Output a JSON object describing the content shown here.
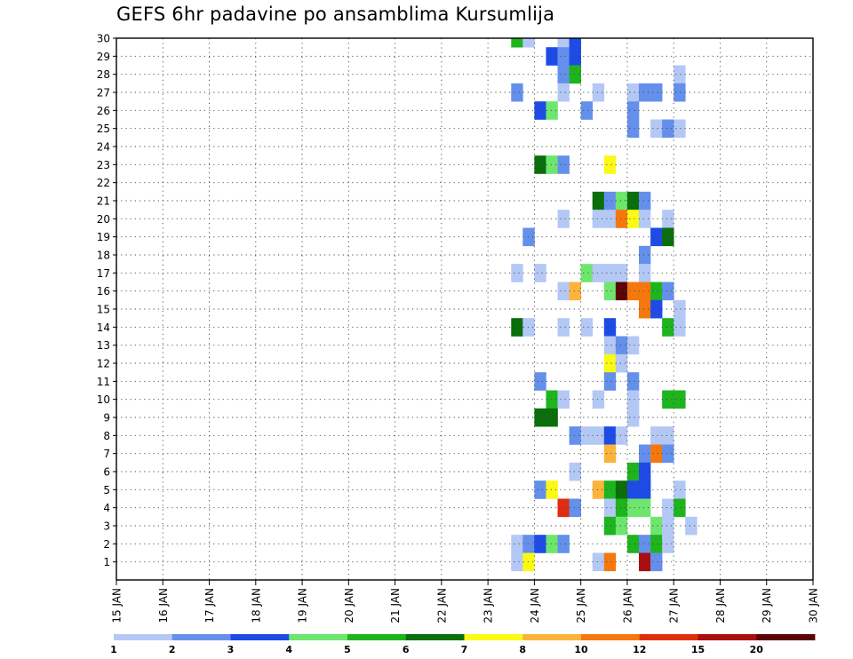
{
  "chart_data": {
    "type": "heatmap",
    "title": "GEFS 6hr padavine po ansamblima Kursumlija",
    "xlabel": "",
    "ylabel": "",
    "x_ticks": [
      "15 JAN",
      "16 JAN",
      "17 JAN",
      "18 JAN",
      "19 JAN",
      "20 JAN",
      "21 JAN",
      "22 JAN",
      "23 JAN",
      "24 JAN",
      "25 JAN",
      "26 JAN",
      "27 JAN",
      "28 JAN",
      "29 JAN",
      "30 JAN"
    ],
    "y_ticks": [
      1,
      2,
      3,
      4,
      5,
      6,
      7,
      8,
      9,
      10,
      11,
      12,
      13,
      14,
      15,
      16,
      17,
      18,
      19,
      20,
      21,
      22,
      23,
      24,
      25,
      26,
      27,
      28,
      29,
      30
    ],
    "xlim": [
      0,
      60
    ],
    "ylim": [
      0,
      30
    ],
    "grid": true,
    "legend": {
      "position": "bottom",
      "thresholds": [
        "1",
        "2",
        "3",
        "4",
        "5",
        "6",
        "7",
        "8",
        "10",
        "12",
        "15",
        "20"
      ],
      "colors": [
        "#b4c8f5",
        "#6490eb",
        "#1e4be6",
        "#6ee66e",
        "#1eb41e",
        "#0a6e0a",
        "#fafa14",
        "#fab43c",
        "#f5780f",
        "#e12d0f",
        "#aa0f0f",
        "#5a0505"
      ]
    },
    "cells": [
      {
        "x": 34.5,
        "y": 30,
        "c": 5
      },
      {
        "x": 35.5,
        "y": 30,
        "c": 1
      },
      {
        "x": 38.5,
        "y": 30,
        "c": 1
      },
      {
        "x": 39.5,
        "y": 30,
        "c": 3
      },
      {
        "x": 37.5,
        "y": 29,
        "c": 3
      },
      {
        "x": 38.5,
        "y": 29,
        "c": 2
      },
      {
        "x": 39.5,
        "y": 29,
        "c": 3
      },
      {
        "x": 38.5,
        "y": 28,
        "c": 2
      },
      {
        "x": 39.5,
        "y": 28,
        "c": 5
      },
      {
        "x": 48.5,
        "y": 28,
        "c": 1
      },
      {
        "x": 34.5,
        "y": 27,
        "c": 2
      },
      {
        "x": 38.5,
        "y": 27,
        "c": 1
      },
      {
        "x": 41.5,
        "y": 27,
        "c": 1
      },
      {
        "x": 44.5,
        "y": 27,
        "c": 1
      },
      {
        "x": 45.5,
        "y": 27,
        "c": 2
      },
      {
        "x": 46.5,
        "y": 27,
        "c": 2
      },
      {
        "x": 48.5,
        "y": 27,
        "c": 2
      },
      {
        "x": 36.5,
        "y": 26,
        "c": 3
      },
      {
        "x": 37.5,
        "y": 26,
        "c": 4
      },
      {
        "x": 40.5,
        "y": 26,
        "c": 2
      },
      {
        "x": 44.5,
        "y": 26,
        "c": 2
      },
      {
        "x": 44.5,
        "y": 25,
        "c": 2
      },
      {
        "x": 46.5,
        "y": 25,
        "c": 1
      },
      {
        "x": 47.5,
        "y": 25,
        "c": 2
      },
      {
        "x": 48.5,
        "y": 25,
        "c": 1
      },
      {
        "x": 36.5,
        "y": 23,
        "c": 6
      },
      {
        "x": 37.5,
        "y": 23,
        "c": 4
      },
      {
        "x": 38.5,
        "y": 23,
        "c": 2
      },
      {
        "x": 42.5,
        "y": 23,
        "c": 7
      },
      {
        "x": 41.5,
        "y": 21,
        "c": 6
      },
      {
        "x": 42.5,
        "y": 21,
        "c": 2
      },
      {
        "x": 43.5,
        "y": 21,
        "c": 4
      },
      {
        "x": 44.5,
        "y": 21,
        "c": 6
      },
      {
        "x": 45.5,
        "y": 21,
        "c": 2
      },
      {
        "x": 38.5,
        "y": 20,
        "c": 1
      },
      {
        "x": 41.5,
        "y": 20,
        "c": 1
      },
      {
        "x": 42.5,
        "y": 20,
        "c": 1
      },
      {
        "x": 43.5,
        "y": 20,
        "c": 9
      },
      {
        "x": 44.5,
        "y": 20,
        "c": 7
      },
      {
        "x": 45.5,
        "y": 20,
        "c": 1
      },
      {
        "x": 47.5,
        "y": 20,
        "c": 1
      },
      {
        "x": 35.5,
        "y": 19,
        "c": 2
      },
      {
        "x": 46.5,
        "y": 19,
        "c": 3
      },
      {
        "x": 47.5,
        "y": 19,
        "c": 6
      },
      {
        "x": 45.5,
        "y": 18,
        "c": 2
      },
      {
        "x": 34.5,
        "y": 17,
        "c": 1
      },
      {
        "x": 36.5,
        "y": 17,
        "c": 1
      },
      {
        "x": 40.5,
        "y": 17,
        "c": 4
      },
      {
        "x": 41.5,
        "y": 17,
        "c": 1
      },
      {
        "x": 42.5,
        "y": 17,
        "c": 1
      },
      {
        "x": 43.5,
        "y": 17,
        "c": 1
      },
      {
        "x": 45.5,
        "y": 17,
        "c": 1
      },
      {
        "x": 38.5,
        "y": 16,
        "c": 1
      },
      {
        "x": 39.5,
        "y": 16,
        "c": 8
      },
      {
        "x": 42.5,
        "y": 16,
        "c": 4
      },
      {
        "x": 43.5,
        "y": 16,
        "c": 12
      },
      {
        "x": 44.5,
        "y": 16,
        "c": 9
      },
      {
        "x": 45.5,
        "y": 16,
        "c": 9
      },
      {
        "x": 46.5,
        "y": 16,
        "c": 5
      },
      {
        "x": 47.5,
        "y": 16,
        "c": 2
      },
      {
        "x": 45.5,
        "y": 15,
        "c": 9
      },
      {
        "x": 46.5,
        "y": 15,
        "c": 3
      },
      {
        "x": 48.5,
        "y": 15,
        "c": 1
      },
      {
        "x": 34.5,
        "y": 14,
        "c": 6
      },
      {
        "x": 35.5,
        "y": 14,
        "c": 1
      },
      {
        "x": 38.5,
        "y": 14,
        "c": 1
      },
      {
        "x": 40.5,
        "y": 14,
        "c": 1
      },
      {
        "x": 42.5,
        "y": 14,
        "c": 3
      },
      {
        "x": 47.5,
        "y": 14,
        "c": 5
      },
      {
        "x": 48.5,
        "y": 14,
        "c": 1
      },
      {
        "x": 42.5,
        "y": 13,
        "c": 1
      },
      {
        "x": 43.5,
        "y": 13,
        "c": 2
      },
      {
        "x": 44.5,
        "y": 13,
        "c": 1
      },
      {
        "x": 42.5,
        "y": 12,
        "c": 7
      },
      {
        "x": 43.5,
        "y": 12,
        "c": 1
      },
      {
        "x": 36.5,
        "y": 11,
        "c": 2
      },
      {
        "x": 42.5,
        "y": 11,
        "c": 2
      },
      {
        "x": 44.5,
        "y": 11,
        "c": 2
      },
      {
        "x": 37.5,
        "y": 10,
        "c": 5
      },
      {
        "x": 38.5,
        "y": 10,
        "c": 1
      },
      {
        "x": 41.5,
        "y": 10,
        "c": 1
      },
      {
        "x": 44.5,
        "y": 10,
        "c": 1
      },
      {
        "x": 47.5,
        "y": 10,
        "c": 5
      },
      {
        "x": 48.5,
        "y": 10,
        "c": 5
      },
      {
        "x": 36.5,
        "y": 9,
        "c": 6
      },
      {
        "x": 37.5,
        "y": 9,
        "c": 6
      },
      {
        "x": 44.5,
        "y": 9,
        "c": 1
      },
      {
        "x": 39.5,
        "y": 8,
        "c": 2
      },
      {
        "x": 40.5,
        "y": 8,
        "c": 1
      },
      {
        "x": 41.5,
        "y": 8,
        "c": 1
      },
      {
        "x": 42.5,
        "y": 8,
        "c": 3
      },
      {
        "x": 43.5,
        "y": 8,
        "c": 1
      },
      {
        "x": 46.5,
        "y": 8,
        "c": 1
      },
      {
        "x": 47.5,
        "y": 8,
        "c": 1
      },
      {
        "x": 42.5,
        "y": 7,
        "c": 8
      },
      {
        "x": 45.5,
        "y": 7,
        "c": 2
      },
      {
        "x": 46.5,
        "y": 7,
        "c": 9
      },
      {
        "x": 47.5,
        "y": 7,
        "c": 2
      },
      {
        "x": 39.5,
        "y": 6,
        "c": 1
      },
      {
        "x": 44.5,
        "y": 6,
        "c": 5
      },
      {
        "x": 45.5,
        "y": 6,
        "c": 3
      },
      {
        "x": 36.5,
        "y": 5,
        "c": 2
      },
      {
        "x": 37.5,
        "y": 5,
        "c": 7
      },
      {
        "x": 41.5,
        "y": 5,
        "c": 8
      },
      {
        "x": 42.5,
        "y": 5,
        "c": 5
      },
      {
        "x": 43.5,
        "y": 5,
        "c": 6
      },
      {
        "x": 44.5,
        "y": 5,
        "c": 3
      },
      {
        "x": 45.5,
        "y": 5,
        "c": 3
      },
      {
        "x": 48.5,
        "y": 5,
        "c": 1
      },
      {
        "x": 38.5,
        "y": 4,
        "c": 10
      },
      {
        "x": 39.5,
        "y": 4,
        "c": 2
      },
      {
        "x": 42.5,
        "y": 4,
        "c": 1
      },
      {
        "x": 43.5,
        "y": 4,
        "c": 5
      },
      {
        "x": 44.5,
        "y": 4,
        "c": 4
      },
      {
        "x": 45.5,
        "y": 4,
        "c": 4
      },
      {
        "x": 47.5,
        "y": 4,
        "c": 1
      },
      {
        "x": 48.5,
        "y": 4,
        "c": 5
      },
      {
        "x": 42.5,
        "y": 3,
        "c": 5
      },
      {
        "x": 43.5,
        "y": 3,
        "c": 4
      },
      {
        "x": 46.5,
        "y": 3,
        "c": 4
      },
      {
        "x": 47.5,
        "y": 3,
        "c": 1
      },
      {
        "x": 49.5,
        "y": 3,
        "c": 1
      },
      {
        "x": 34.5,
        "y": 2,
        "c": 1
      },
      {
        "x": 35.5,
        "y": 2,
        "c": 2
      },
      {
        "x": 36.5,
        "y": 2,
        "c": 3
      },
      {
        "x": 37.5,
        "y": 2,
        "c": 4
      },
      {
        "x": 38.5,
        "y": 2,
        "c": 2
      },
      {
        "x": 44.5,
        "y": 2,
        "c": 5
      },
      {
        "x": 45.5,
        "y": 2,
        "c": 2
      },
      {
        "x": 46.5,
        "y": 2,
        "c": 5
      },
      {
        "x": 47.5,
        "y": 2,
        "c": 1
      },
      {
        "x": 34.5,
        "y": 1,
        "c": 1
      },
      {
        "x": 35.5,
        "y": 1,
        "c": 7
      },
      {
        "x": 41.5,
        "y": 1,
        "c": 1
      },
      {
        "x": 42.5,
        "y": 1,
        "c": 9
      },
      {
        "x": 45.5,
        "y": 1,
        "c": 11
      },
      {
        "x": 46.5,
        "y": 1,
        "c": 2
      }
    ]
  }
}
